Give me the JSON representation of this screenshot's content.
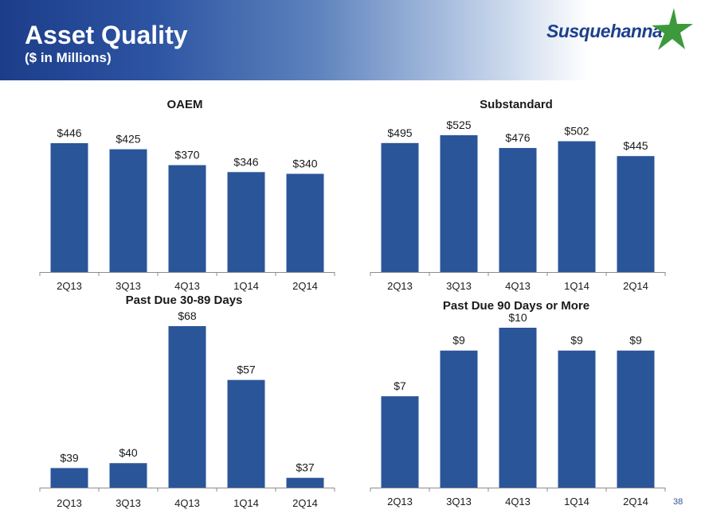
{
  "header": {
    "title": "Asset Quality",
    "subtitle": "($ in Millions)"
  },
  "logo": {
    "text": "Susquehanna",
    "icon": "green-star-icon",
    "color": "#1e3f8c",
    "star_color": "#3c9a3c"
  },
  "colors": {
    "bar": "#2a5599",
    "axis": "#8c8c8c"
  },
  "page_number": "38",
  "chart_data": [
    {
      "type": "bar",
      "title": "OAEM",
      "categories": [
        "2Q13",
        "3Q13",
        "4Q13",
        "1Q14",
        "2Q14"
      ],
      "values": [
        446,
        425,
        370,
        346,
        340
      ],
      "labels": [
        "$446",
        "$425",
        "$370",
        "$346",
        "$340"
      ],
      "ylim": [
        0,
        446
      ],
      "grid": false,
      "legend": "none"
    },
    {
      "type": "bar",
      "title": "Substandard",
      "categories": [
        "2Q13",
        "3Q13",
        "4Q13",
        "1Q14",
        "2Q14"
      ],
      "values": [
        495,
        525,
        476,
        502,
        445
      ],
      "labels": [
        "$495",
        "$525",
        "$476",
        "$502",
        "$445"
      ],
      "ylim": [
        0,
        525
      ],
      "grid": false,
      "legend": "none"
    },
    {
      "type": "bar",
      "title": "Past Due 30-89 Days",
      "categories": [
        "2Q13",
        "3Q13",
        "4Q13",
        "1Q14",
        "2Q14"
      ],
      "values": [
        39,
        40,
        68,
        57,
        37
      ],
      "labels": [
        "$39",
        "$40",
        "$68",
        "$57",
        "$37"
      ],
      "ylim": [
        35,
        68
      ],
      "grid": false,
      "legend": "none"
    },
    {
      "type": "bar",
      "title": "Past Due 90 Days or More",
      "categories": [
        "2Q13",
        "3Q13",
        "4Q13",
        "1Q14",
        "2Q14"
      ],
      "values": [
        7,
        9,
        10,
        9,
        9
      ],
      "labels": [
        "$7",
        "$9",
        "$10",
        "$9",
        "$9"
      ],
      "ylim": [
        3,
        10
      ],
      "grid": false,
      "legend": "none"
    }
  ]
}
